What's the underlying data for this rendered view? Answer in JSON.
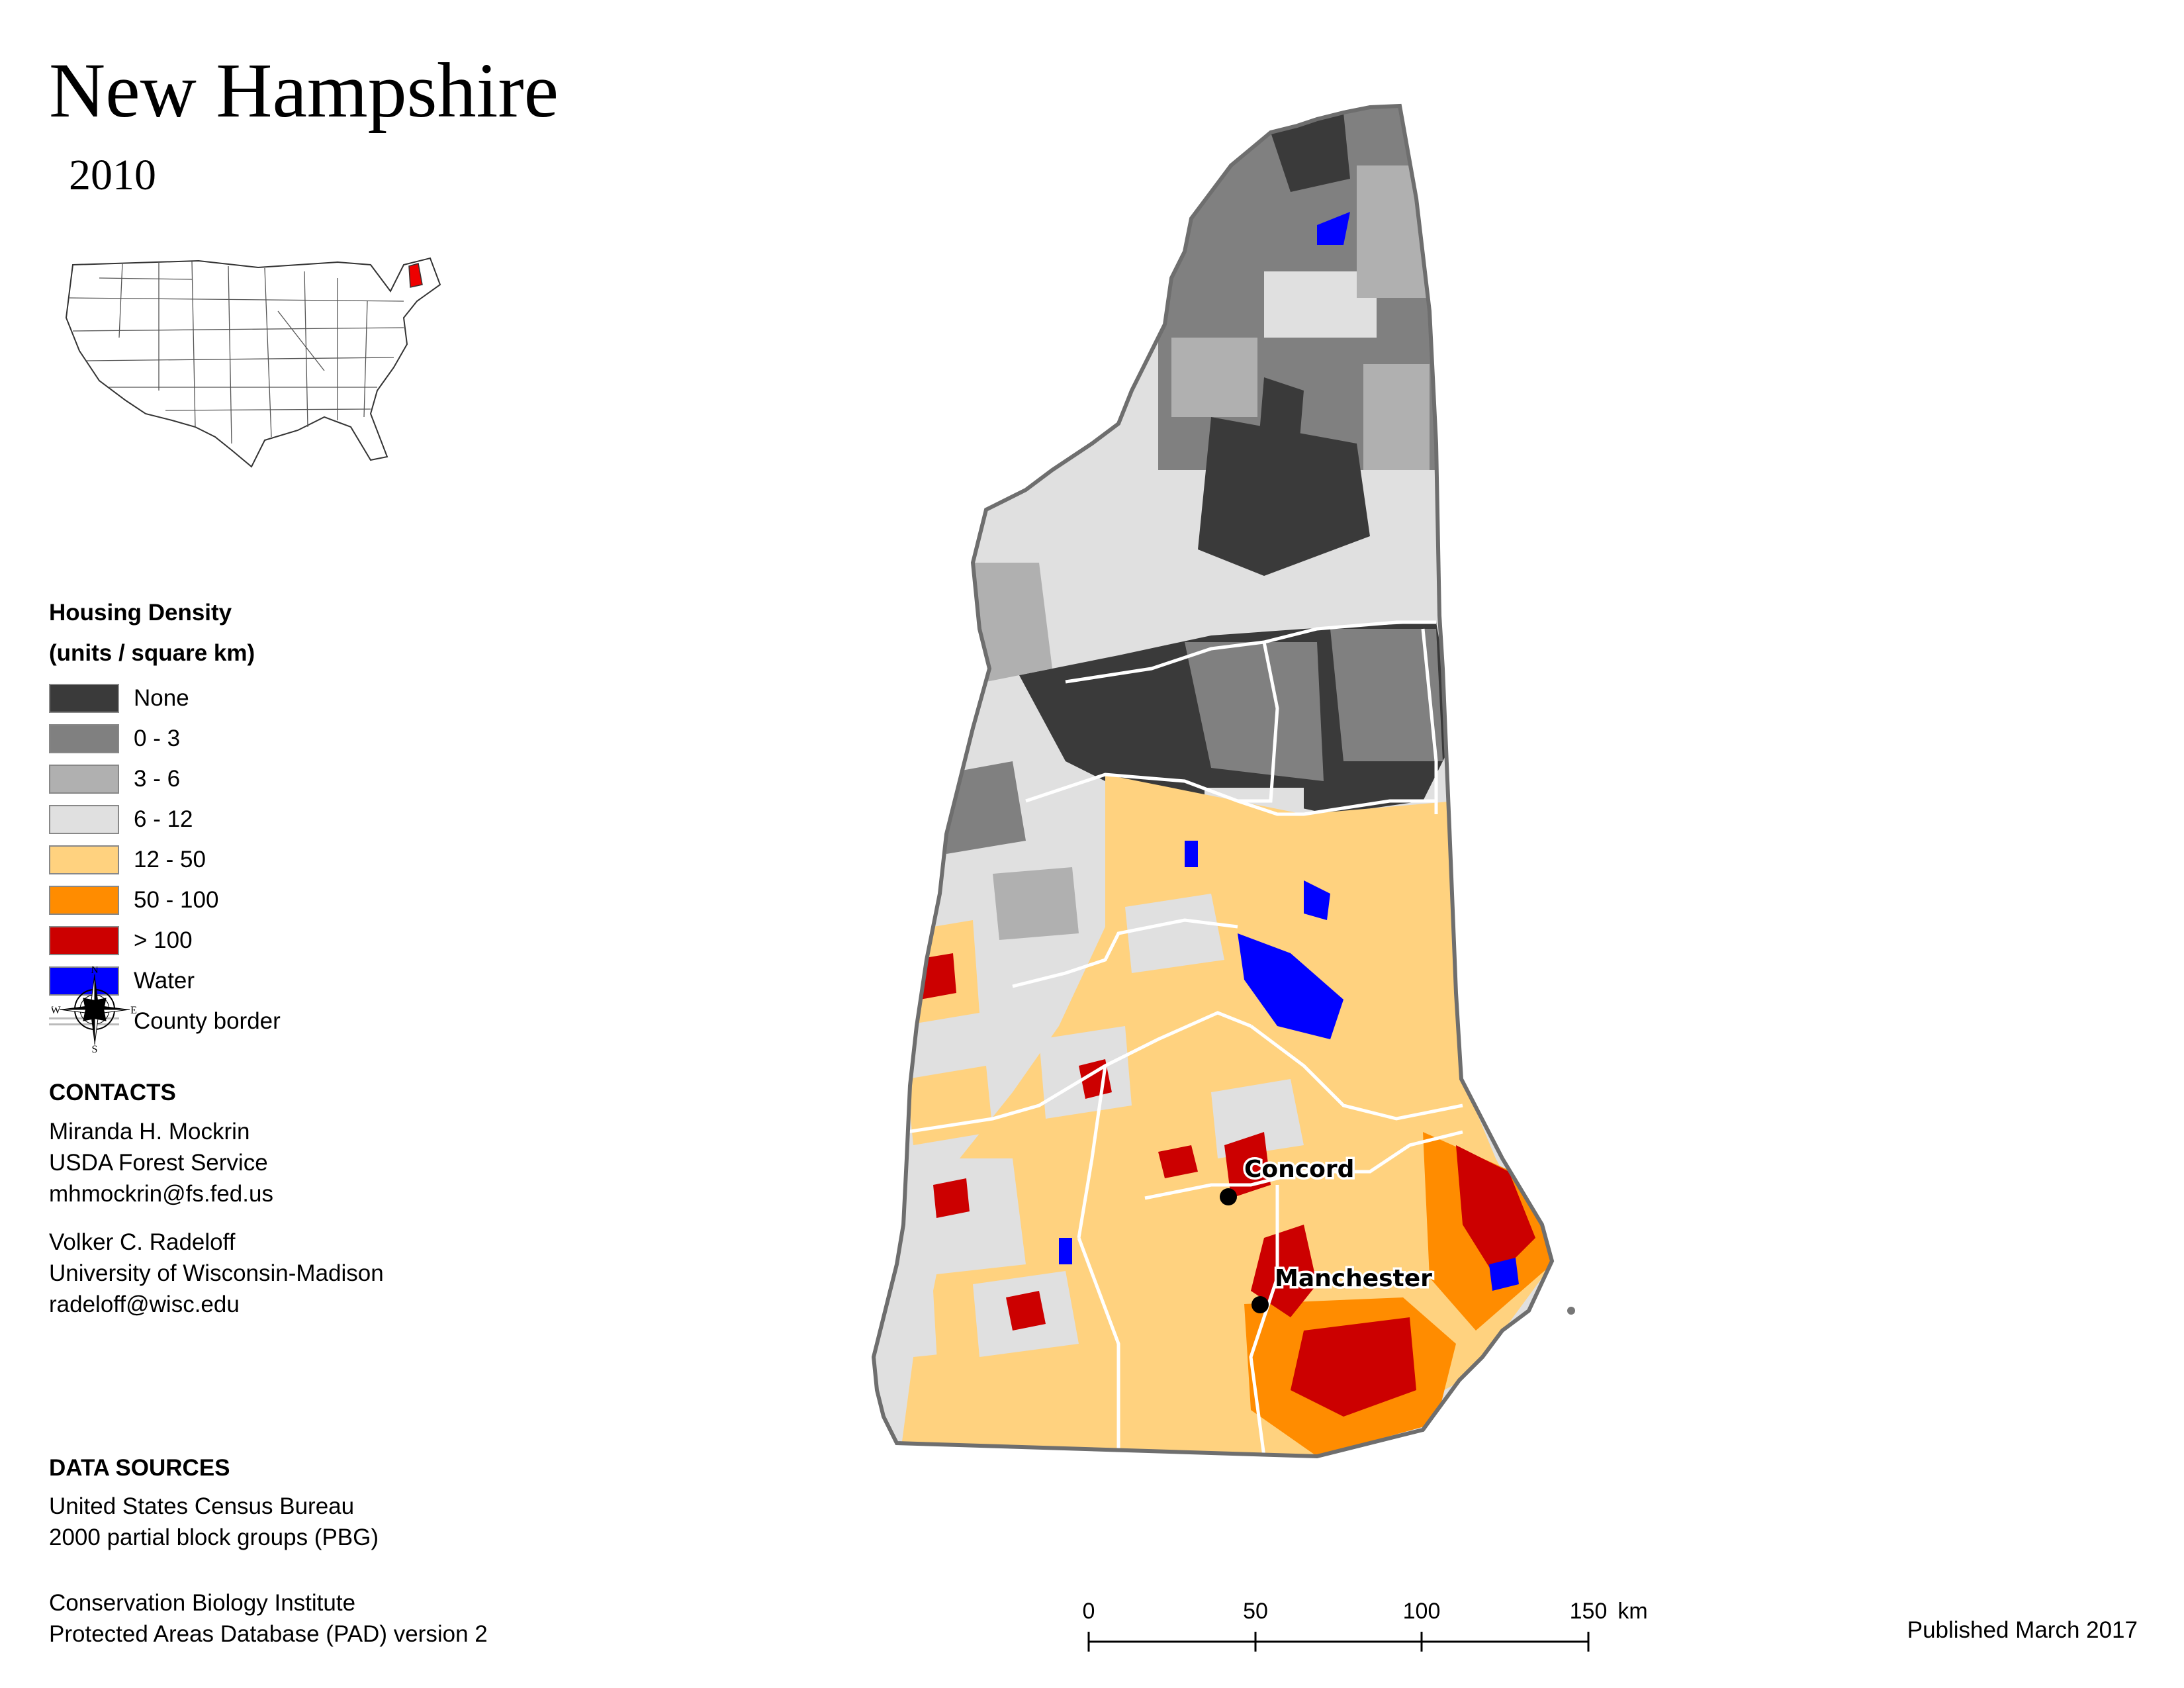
{
  "header": {
    "title": "New Hampshire",
    "year": "2010"
  },
  "legend": {
    "title_line1": "Housing Density",
    "title_line2": "(units / square km)",
    "items": [
      {
        "label": "None",
        "color": "#3a3a3a"
      },
      {
        "label": "0 - 3",
        "color": "#808080"
      },
      {
        "label": "3 - 6",
        "color": "#b0b0b0"
      },
      {
        "label": "6 - 12",
        "color": "#e0e0e0"
      },
      {
        "label": "12 - 50",
        "color": "#ffd27f"
      },
      {
        "label": "50 - 100",
        "color": "#ff8c00"
      },
      {
        "label": "> 100",
        "color": "#cc0000"
      },
      {
        "label": "Water",
        "color": "#0000ff"
      }
    ],
    "county_border_label": "County border"
  },
  "compass": {
    "n": "N",
    "s": "S",
    "e": "E",
    "w": "W"
  },
  "contacts": {
    "heading": "CONTACTS",
    "people": [
      {
        "name": "Miranda H. Mockrin",
        "org": "USDA Forest Service",
        "email": "mhmockrin@fs.fed.us"
      },
      {
        "name": "Volker C. Radeloff",
        "org": "University of Wisconsin-Madison",
        "email": "radeloff@wisc.edu"
      }
    ]
  },
  "data_sources": {
    "heading": "DATA SOURCES",
    "lines": [
      "United States Census Bureau",
      "2000 partial block groups (PBG)",
      "Conservation Biology Institute",
      "Protected Areas Database (PAD) version 2"
    ]
  },
  "map": {
    "cities": [
      {
        "name": "Concord"
      },
      {
        "name": "Manchester"
      }
    ]
  },
  "scale": {
    "ticks": [
      "0",
      "50",
      "100",
      "150"
    ],
    "unit": "km"
  },
  "footer": {
    "published": "Published March 2017"
  }
}
